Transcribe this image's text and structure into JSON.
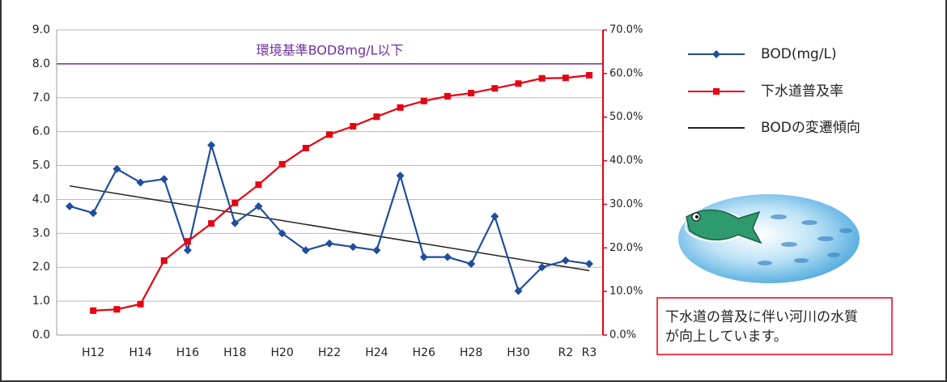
{
  "chart_data": {
    "type": "line",
    "categories": [
      null,
      "H12",
      null,
      "H14",
      null,
      "H16",
      null,
      "H18",
      null,
      "H20",
      null,
      "H22",
      null,
      "H24",
      null,
      "H26",
      null,
      "H28",
      null,
      "H30",
      null,
      "R2",
      "R3"
    ],
    "series": [
      {
        "name": "BOD(mg/L)",
        "color": "#1f4e9c",
        "marker": "diamond",
        "axis": "y",
        "values": [
          3.8,
          3.6,
          4.9,
          4.5,
          4.6,
          2.5,
          5.6,
          3.3,
          3.8,
          3.0,
          2.5,
          2.7,
          2.6,
          2.5,
          4.7,
          2.3,
          2.3,
          2.1,
          3.5,
          1.3,
          2.0,
          2.2,
          2.1
        ]
      },
      {
        "name": "下水道普及率",
        "color": "#e60012",
        "marker": "square",
        "axis": "y2",
        "values": [
          null,
          5.6,
          5.9,
          7.1,
          17.1,
          21.5,
          25.6,
          30.3,
          34.5,
          39.2,
          42.9,
          46.0,
          47.9,
          50.1,
          52.2,
          53.7,
          54.8,
          55.5,
          56.6,
          57.7,
          58.9,
          59.0,
          59.6
        ]
      }
    ],
    "trend": {
      "name": "BODの変遷傾向",
      "color": "#222222",
      "values": [
        4.4,
        1.9
      ]
    },
    "reference_line": {
      "value": 8,
      "label": "環境基準BOD8mg/L以下",
      "color": "#7030a0"
    },
    "ylim": [
      0,
      9
    ],
    "yticks": [
      {
        "value": 0,
        "label": "0.0"
      },
      {
        "value": 1,
        "label": "1.0"
      },
      {
        "value": 2,
        "label": "2.0"
      },
      {
        "value": 3,
        "label": "3.0"
      },
      {
        "value": 4,
        "label": "4.0"
      },
      {
        "value": 5,
        "label": "5.0"
      },
      {
        "value": 6,
        "label": "6.0"
      },
      {
        "value": 7,
        "label": "7.0"
      },
      {
        "value": 8,
        "label": "8.0"
      },
      {
        "value": 9,
        "label": "9.0"
      }
    ],
    "y2lim": [
      0,
      70
    ],
    "y2ticks": [
      {
        "value": 0,
        "label": "0.0%"
      },
      {
        "value": 10,
        "label": "10.0%"
      },
      {
        "value": 20,
        "label": "20.0%"
      },
      {
        "value": 30,
        "label": "30.0%"
      },
      {
        "value": 40,
        "label": "40.0%"
      },
      {
        "value": 50,
        "label": "50.0%"
      },
      {
        "value": 60,
        "label": "60.0%"
      },
      {
        "value": 70,
        "label": "70.0%"
      }
    ],
    "grid": true,
    "annotation": [
      "下水道の普及に伴い河川の水質",
      "が向上しています。"
    ]
  }
}
